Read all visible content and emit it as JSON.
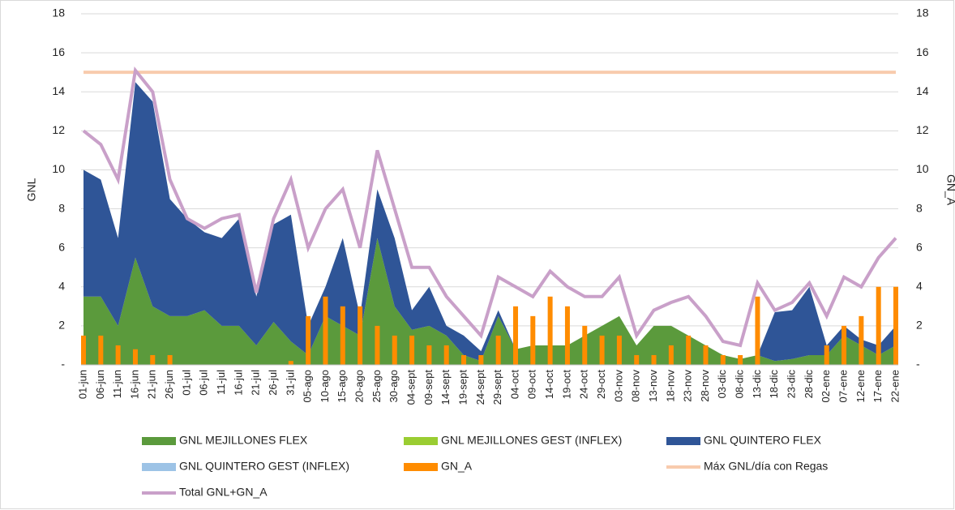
{
  "chart_data": {
    "type": "combo",
    "y_label": "GNL",
    "y2_label": "GN_A",
    "categories": [
      "01-jun",
      "06-jun",
      "11-jun",
      "16-jun",
      "21-jun",
      "26-jun",
      "01-jul",
      "06-jul",
      "11-jul",
      "16-jul",
      "21-jul",
      "26-jul",
      "31-jul",
      "05-ago",
      "10-ago",
      "15-ago",
      "20-ago",
      "25-ago",
      "30-ago",
      "04-sept",
      "09-sept",
      "14-sept",
      "19-sept",
      "24-sept",
      "29-sept",
      "04-oct",
      "09-oct",
      "14-oct",
      "19-oct",
      "24-oct",
      "29-oct",
      "03-nov",
      "08-nov",
      "13-nov",
      "18-nov",
      "23-nov",
      "28-nov",
      "03-dic",
      "08-dic",
      "13-dic",
      "18-dic",
      "23-dic",
      "28-dic",
      "02-ene",
      "07-ene",
      "12-ene",
      "17-ene",
      "22-ene"
    ],
    "ylim": [
      0,
      18
    ],
    "yticks": [
      {
        "value": 0,
        "label": "-"
      },
      2,
      4,
      6,
      8,
      10,
      12,
      14,
      16,
      18
    ],
    "y2lim": [
      0,
      18
    ],
    "y2ticks": [
      {
        "value": 0,
        "label": "-"
      },
      2,
      4,
      6,
      8,
      10,
      12,
      14,
      16,
      18
    ],
    "grid": true,
    "series": [
      {
        "name": "GNL MEJILLONES FLEX",
        "type": "area",
        "color": "#5b9a3c",
        "values": [
          3.5,
          3.5,
          2.0,
          5.5,
          3.0,
          2.5,
          2.5,
          2.8,
          2.0,
          2.0,
          1.0,
          2.2,
          1.2,
          0.5,
          2.5,
          2.0,
          1.5,
          6.5,
          3.0,
          1.8,
          2.0,
          1.5,
          0.5,
          0.2,
          2.5,
          0.8,
          1.0,
          1.0,
          1.0,
          1.5,
          2.0,
          2.5,
          1.0,
          2.0,
          2.0,
          1.5,
          1.0,
          0.5,
          0.3,
          0.5,
          0.2,
          0.3,
          0.5,
          0.5,
          1.5,
          1.0,
          0.5,
          1.0
        ]
      },
      {
        "name": "GNL MEJILLONES GEST (INFLEX)",
        "type": "area",
        "color": "#9acd32",
        "values": [
          0,
          0,
          0,
          0,
          0,
          0,
          0,
          0,
          0,
          0,
          0,
          0,
          0,
          0,
          0,
          0,
          0,
          0,
          0,
          0,
          0,
          0,
          0,
          0,
          0,
          0,
          0,
          0,
          0,
          0,
          0,
          0,
          0,
          0,
          0,
          0,
          0,
          0,
          0,
          0,
          0,
          0,
          0,
          0,
          0,
          0,
          0,
          0
        ]
      },
      {
        "name": "GNL QUINTERO FLEX",
        "type": "area",
        "color": "#2f5597",
        "values": [
          6.5,
          6.0,
          4.5,
          9.0,
          10.5,
          6.0,
          5.0,
          4.0,
          4.5,
          5.5,
          2.5,
          5.0,
          6.5,
          1.5,
          1.5,
          4.5,
          1.0,
          2.5,
          3.5,
          1.0,
          2.0,
          0.5,
          1.0,
          0.5,
          0.3,
          0,
          0,
          0,
          0,
          0,
          0,
          0,
          0,
          0,
          0,
          0,
          0,
          0,
          0,
          0,
          2.5,
          2.5,
          3.5,
          0.5,
          0.5,
          0.3,
          0.5,
          1.0
        ]
      },
      {
        "name": "GNL QUINTERO GEST (INFLEX)",
        "type": "area",
        "color": "#9dc3e6",
        "values": [
          0,
          0,
          0,
          0,
          0,
          0,
          0,
          0,
          0,
          0,
          0,
          0,
          0,
          0,
          0,
          0,
          0,
          0,
          0,
          0,
          0,
          0,
          0,
          0,
          0,
          0,
          0,
          0,
          0,
          0,
          0,
          0,
          0,
          0,
          0,
          0,
          0,
          0,
          0,
          0,
          0,
          0,
          0,
          0,
          0,
          0,
          0,
          0
        ]
      },
      {
        "name": "GN_A",
        "type": "bar",
        "axis": "y2",
        "color": "#ff8c00",
        "values": [
          1.5,
          1.5,
          1.0,
          0.8,
          0.5,
          0.5,
          0,
          0,
          0,
          0,
          0,
          0,
          0.2,
          2.5,
          3.5,
          3.0,
          3.0,
          2.0,
          1.5,
          1.5,
          1.0,
          1.0,
          0.5,
          0.5,
          1.5,
          3.0,
          2.5,
          3.5,
          3.0,
          2.0,
          1.5,
          1.5,
          0.5,
          0.5,
          1.0,
          1.5,
          1.0,
          0.5,
          0.5,
          3.5,
          0,
          0,
          0,
          1.0,
          2.0,
          2.5,
          4.0,
          4.0
        ]
      },
      {
        "name": "Máx GNL/día con Regas",
        "type": "line",
        "color": "#f8cbad",
        "values": [
          15,
          15,
          15,
          15,
          15,
          15,
          15,
          15,
          15,
          15,
          15,
          15,
          15,
          15,
          15,
          15,
          15,
          15,
          15,
          15,
          15,
          15,
          15,
          15,
          15,
          15,
          15,
          15,
          15,
          15,
          15,
          15,
          15,
          15,
          15,
          15,
          15,
          15,
          15,
          15,
          15,
          15,
          15,
          15,
          15,
          15,
          15,
          15
        ]
      },
      {
        "name": "Total GNL+GN_A",
        "type": "line",
        "color": "#c9a0c9",
        "values": [
          12.0,
          11.3,
          9.5,
          15.1,
          14.0,
          9.5,
          7.5,
          7.0,
          7.5,
          7.7,
          3.7,
          7.5,
          9.5,
          6.0,
          8.0,
          9.0,
          6.0,
          11.0,
          8.0,
          5.0,
          5.0,
          3.5,
          2.5,
          1.5,
          4.5,
          4.0,
          3.5,
          4.8,
          4.0,
          3.5,
          3.5,
          4.5,
          1.5,
          2.8,
          3.2,
          3.5,
          2.5,
          1.2,
          1.0,
          4.2,
          2.8,
          3.2,
          4.2,
          2.5,
          4.5,
          4.0,
          5.5,
          6.5
        ]
      }
    ]
  }
}
